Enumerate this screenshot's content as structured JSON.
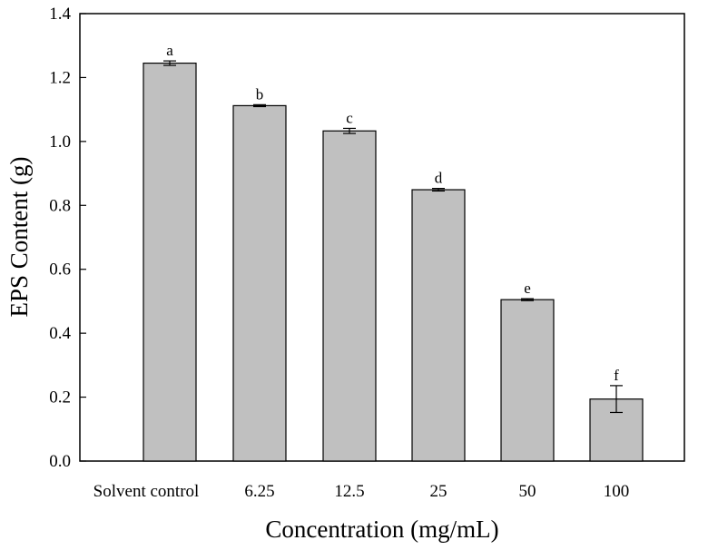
{
  "chart_data": {
    "type": "bar",
    "title": "",
    "xlabel": "Concentration (mg/mL)",
    "ylabel": "EPS Content (g)",
    "ylim": [
      0,
      1.4
    ],
    "yticks": [
      "0.0",
      "0.2",
      "0.4",
      "0.6",
      "0.8",
      "1.0",
      "1.2",
      "1.4"
    ],
    "categories": [
      "Solvent control",
      "6.25",
      "12.5",
      "25",
      "50",
      "100"
    ],
    "values": [
      1.245,
      1.112,
      1.033,
      0.849,
      0.505,
      0.194
    ],
    "errors": [
      0.007,
      0.003,
      0.008,
      0.004,
      0.003,
      0.042
    ],
    "significance_letters": [
      "a",
      "b",
      "c",
      "d",
      "e",
      "f"
    ],
    "grid": false,
    "bar_color": "#c0c0c0",
    "edge_color": "#000000"
  }
}
